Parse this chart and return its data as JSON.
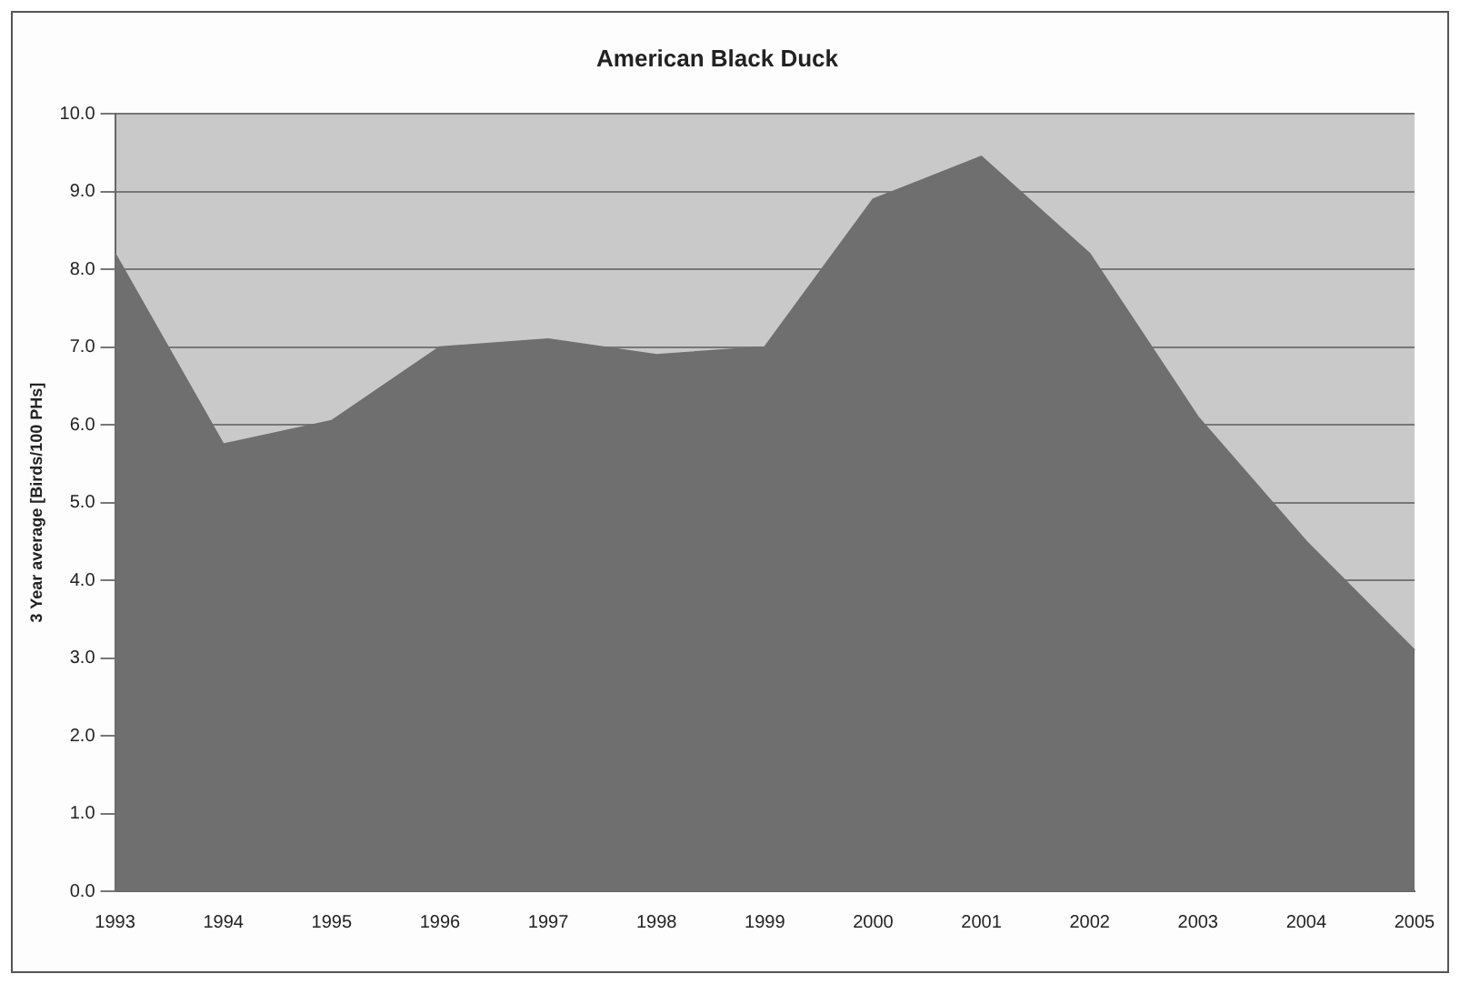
{
  "chart_data": {
    "type": "area",
    "title": "American Black Duck",
    "ylabel": "3 Year average [Birds/100 PHs]",
    "categories": [
      "1993",
      "1994",
      "1995",
      "1996",
      "1997",
      "1998",
      "1999",
      "2000",
      "2001",
      "2002",
      "2003",
      "2004",
      "2005"
    ],
    "series": [
      {
        "color": "#6f6f6f",
        "values": [
          8.2,
          5.75,
          6.05,
          7.0,
          7.1,
          6.9,
          7.0,
          8.9,
          9.45,
          8.2,
          6.1,
          4.5,
          3.1
        ]
      }
    ],
    "ylim": [
      0,
      10
    ],
    "yticks": [
      {
        "value": 0,
        "label": "0.0"
      },
      {
        "value": 1,
        "label": "1.0"
      },
      {
        "value": 2,
        "label": "2.0"
      },
      {
        "value": 3,
        "label": "3.0"
      },
      {
        "value": 4,
        "label": "4.0"
      },
      {
        "value": 5,
        "label": "5.0"
      },
      {
        "value": 6,
        "label": "6.0"
      },
      {
        "value": 7,
        "label": "7.0"
      },
      {
        "value": 8,
        "label": "8.0"
      },
      {
        "value": 9,
        "label": "9.0"
      },
      {
        "value": 10,
        "label": "10.0"
      }
    ],
    "grid": "y",
    "legend": false
  }
}
